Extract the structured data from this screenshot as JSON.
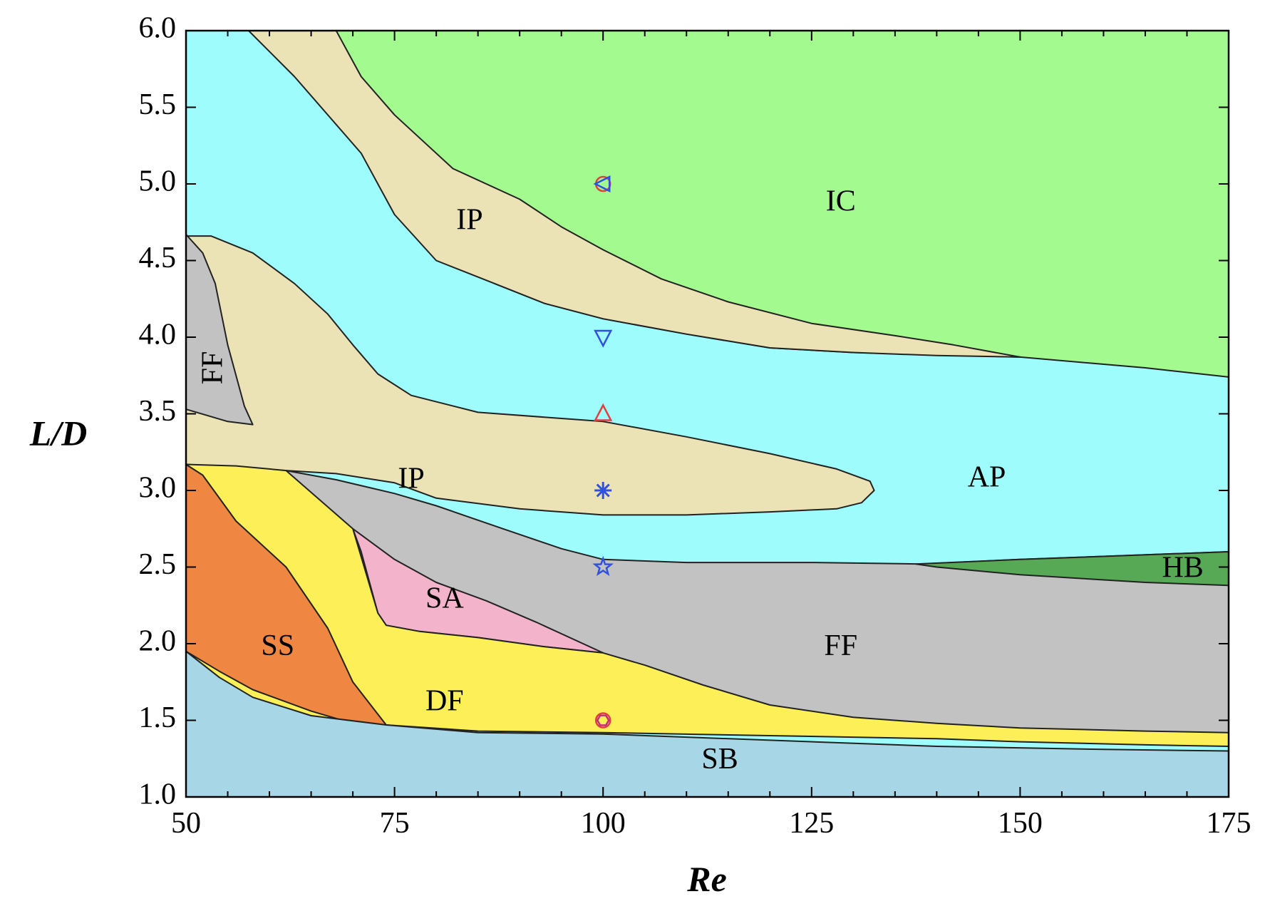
{
  "chart_data": {
    "type": "area",
    "xlabel": "Re",
    "ylabel": "L/D",
    "xlim": [
      50,
      175
    ],
    "ylim": [
      1.0,
      6.0
    ],
    "xticks": [
      50,
      75,
      100,
      125,
      150,
      175
    ],
    "yticks": [
      1.0,
      1.5,
      2.0,
      2.5,
      3.0,
      3.5,
      4.0,
      4.5,
      5.0,
      5.5,
      6.0
    ],
    "xtick_labels": [
      "50",
      "75",
      "100",
      "125",
      "150",
      "175"
    ],
    "ytick_labels": [
      "1.0",
      "1.5",
      "2.0",
      "2.5",
      "3.0",
      "3.5",
      "4.0",
      "4.5",
      "5.0",
      "5.5",
      "6.0"
    ],
    "grid": false,
    "regions": [
      {
        "label": "AP",
        "color": "#9ffcfc",
        "label_at": [
          146,
          3.07
        ],
        "polygon": [
          [
            50,
            1
          ],
          [
            175,
            1
          ],
          [
            175,
            6
          ],
          [
            50,
            6
          ]
        ]
      },
      {
        "label": "IC",
        "color": "#a3fa8f",
        "label_at": [
          128.5,
          4.87
        ],
        "polygon": [
          [
            68,
            6
          ],
          [
            175,
            6
          ],
          [
            175,
            3.74
          ],
          [
            165,
            3.8
          ],
          [
            150,
            3.87
          ],
          [
            130,
            3.9
          ],
          [
            120,
            3.93
          ],
          [
            110,
            4.02
          ],
          [
            100,
            4.12
          ],
          [
            93,
            4.22
          ],
          [
            87,
            4.35
          ],
          [
            80,
            4.6
          ],
          [
            75,
            4.85
          ],
          [
            72,
            5.3
          ],
          [
            68.5,
            5.8
          ]
        ]
      },
      {
        "label": "IP",
        "color": "#ebe3b5",
        "label_at": [
          84,
          4.75
        ],
        "polygon": [
          [
            57.5,
            6
          ],
          [
            68,
            6
          ],
          [
            71,
            5.7
          ],
          [
            75,
            5.45
          ],
          [
            82,
            5.1
          ],
          [
            90,
            4.9
          ],
          [
            95,
            4.72
          ],
          [
            100,
            4.57
          ],
          [
            107,
            4.38
          ],
          [
            115,
            4.23
          ],
          [
            125,
            4.09
          ],
          [
            135,
            4.01
          ],
          [
            142,
            3.95
          ],
          [
            150,
            3.87
          ],
          [
            140,
            3.88
          ],
          [
            130,
            3.9
          ],
          [
            120,
            3.93
          ],
          [
            110,
            4.02
          ],
          [
            100,
            4.12
          ],
          [
            93,
            4.22
          ],
          [
            87,
            4.35
          ],
          [
            80,
            4.5
          ],
          [
            75,
            4.8
          ],
          [
            71,
            5.2
          ],
          [
            63,
            5.7
          ]
        ]
      },
      {
        "label": "IP",
        "color": "#ebe3b5",
        "label_at": [
          77,
          3.06
        ],
        "polygon": [
          [
            50,
            4.66
          ],
          [
            53,
            4.66
          ],
          [
            58,
            4.55
          ],
          [
            63,
            4.35
          ],
          [
            67,
            4.15
          ],
          [
            70,
            3.95
          ],
          [
            73,
            3.76
          ],
          [
            77,
            3.62
          ],
          [
            85,
            3.51
          ],
          [
            100,
            3.45
          ],
          [
            110,
            3.35
          ],
          [
            120,
            3.24
          ],
          [
            128,
            3.14
          ],
          [
            132,
            3.06
          ],
          [
            132.5,
            3.0
          ],
          [
            131,
            2.92
          ],
          [
            128,
            2.88
          ],
          [
            120,
            2.86
          ],
          [
            110,
            2.84
          ],
          [
            100,
            2.84
          ],
          [
            90,
            2.88
          ],
          [
            80,
            2.95
          ],
          [
            75,
            3.05
          ],
          [
            68,
            3.11
          ],
          [
            62,
            3.13
          ],
          [
            50,
            3.17
          ]
        ]
      },
      {
        "label": "FF",
        "color": "#c2c2c2",
        "label_at": [
          53.5,
          3.8
        ],
        "polygon": [
          [
            50,
            4.67
          ],
          [
            52,
            4.55
          ],
          [
            53.5,
            4.35
          ],
          [
            55,
            3.95
          ],
          [
            57,
            3.55
          ],
          [
            58,
            3.43
          ],
          [
            55,
            3.45
          ],
          [
            50,
            3.53
          ]
        ]
      },
      {
        "label": "FF",
        "color": "#c2c2c2",
        "label_at": [
          128.5,
          1.97
        ],
        "polygon": [
          [
            62,
            3.13
          ],
          [
            68,
            3.07
          ],
          [
            75,
            2.98
          ],
          [
            80,
            2.9
          ],
          [
            88,
            2.75
          ],
          [
            95,
            2.62
          ],
          [
            100,
            2.55
          ],
          [
            110,
            2.53
          ],
          [
            125,
            2.53
          ],
          [
            138,
            2.52
          ],
          [
            150,
            2.55
          ],
          [
            160,
            2.57
          ],
          [
            175,
            2.6
          ],
          [
            175,
            1.41
          ],
          [
            165,
            1.42
          ],
          [
            150,
            1.43
          ],
          [
            140,
            1.44
          ],
          [
            130,
            1.47
          ],
          [
            120,
            1.55
          ],
          [
            112,
            1.65
          ],
          [
            105,
            1.76
          ],
          [
            100,
            1.94
          ],
          [
            90,
            2.12
          ],
          [
            82,
            2.25
          ],
          [
            75,
            2.5
          ],
          [
            70,
            2.74
          ],
          [
            62,
            3.11
          ]
        ]
      },
      {
        "label": "HB",
        "color": "#58a955",
        "label_at": [
          169.5,
          2.48
        ],
        "polygon": [
          [
            137.5,
            2.52
          ],
          [
            150,
            2.55
          ],
          [
            160,
            2.57
          ],
          [
            175,
            2.6
          ],
          [
            175,
            2.38
          ],
          [
            165,
            2.4
          ],
          [
            150,
            2.45
          ],
          [
            140,
            2.5
          ]
        ]
      },
      {
        "label": "SA",
        "color": "#f3b3ca",
        "label_at": [
          81,
          2.28
        ],
        "polygon": [
          [
            70,
            2.75
          ],
          [
            75,
            2.55
          ],
          [
            80,
            2.4
          ],
          [
            86,
            2.28
          ],
          [
            92,
            2.14
          ],
          [
            100,
            1.94
          ],
          [
            93,
            1.98
          ],
          [
            85,
            2.04
          ],
          [
            78,
            2.08
          ],
          [
            74,
            2.12
          ],
          [
            73,
            2.2
          ],
          [
            72,
            2.4
          ],
          [
            71,
            2.6
          ]
        ]
      },
      {
        "label": "DF",
        "color": "#fdef57",
        "label_at": [
          81,
          1.61
        ],
        "polygon": [
          [
            50,
            3.17
          ],
          [
            56,
            3.16
          ],
          [
            62,
            3.13
          ],
          [
            70,
            2.75
          ],
          [
            73,
            2.2
          ],
          [
            74,
            2.12
          ],
          [
            78,
            2.08
          ],
          [
            85,
            2.04
          ],
          [
            93,
            1.98
          ],
          [
            100,
            1.94
          ],
          [
            105,
            1.86
          ],
          [
            112,
            1.73
          ],
          [
            120,
            1.6
          ],
          [
            130,
            1.52
          ],
          [
            140,
            1.48
          ],
          [
            150,
            1.45
          ],
          [
            165,
            1.43
          ],
          [
            175,
            1.42
          ],
          [
            175,
            1.33
          ],
          [
            165,
            1.34
          ],
          [
            150,
            1.36
          ],
          [
            140,
            1.38
          ],
          [
            120,
            1.4
          ],
          [
            100,
            1.42
          ],
          [
            85,
            1.43
          ],
          [
            74,
            1.47
          ],
          [
            50,
            1.47
          ]
        ]
      },
      {
        "label": "SS",
        "color": "#ef8642",
        "label_at": [
          61,
          1.97
        ],
        "polygon": [
          [
            50,
            3.17
          ],
          [
            52,
            3.1
          ],
          [
            56,
            2.8
          ],
          [
            62,
            2.5
          ],
          [
            67,
            2.1
          ],
          [
            70,
            1.75
          ],
          [
            74,
            1.47
          ],
          [
            70,
            1.48
          ],
          [
            65,
            1.56
          ],
          [
            58,
            1.7
          ],
          [
            54,
            1.82
          ],
          [
            50,
            1.95
          ]
        ]
      },
      {
        "label": "SB",
        "color": "#a7d6e6",
        "label_at": [
          114,
          1.23
        ],
        "polygon": [
          [
            50,
            1
          ],
          [
            175,
            1
          ],
          [
            175,
            1.3
          ],
          [
            160,
            1.31
          ],
          [
            140,
            1.33
          ],
          [
            120,
            1.37
          ],
          [
            100,
            1.41
          ],
          [
            85,
            1.42
          ],
          [
            74,
            1.47
          ],
          [
            65,
            1.53
          ],
          [
            58,
            1.65
          ],
          [
            54,
            1.78
          ],
          [
            50,
            1.95
          ]
        ]
      }
    ],
    "markers": [
      {
        "shape": "circle",
        "x": 100,
        "y": 5.0,
        "color": "#e04040"
      },
      {
        "shape": "triangle-left",
        "x": 100,
        "y": 5.0,
        "color": "#3050e0"
      },
      {
        "shape": "triangle-down",
        "x": 100,
        "y": 4.0,
        "color": "#3050e0"
      },
      {
        "shape": "triangle-up",
        "x": 100,
        "y": 3.5,
        "color": "#e04040"
      },
      {
        "shape": "asterisk",
        "x": 100,
        "y": 3.0,
        "color": "#3050e0"
      },
      {
        "shape": "star",
        "x": 100,
        "y": 2.5,
        "color": "#3050e0"
      },
      {
        "shape": "circle",
        "x": 100,
        "y": 1.5,
        "color": "#e04040"
      },
      {
        "shape": "hexagon",
        "x": 100,
        "y": 1.5,
        "color": "#c03080"
      }
    ]
  }
}
